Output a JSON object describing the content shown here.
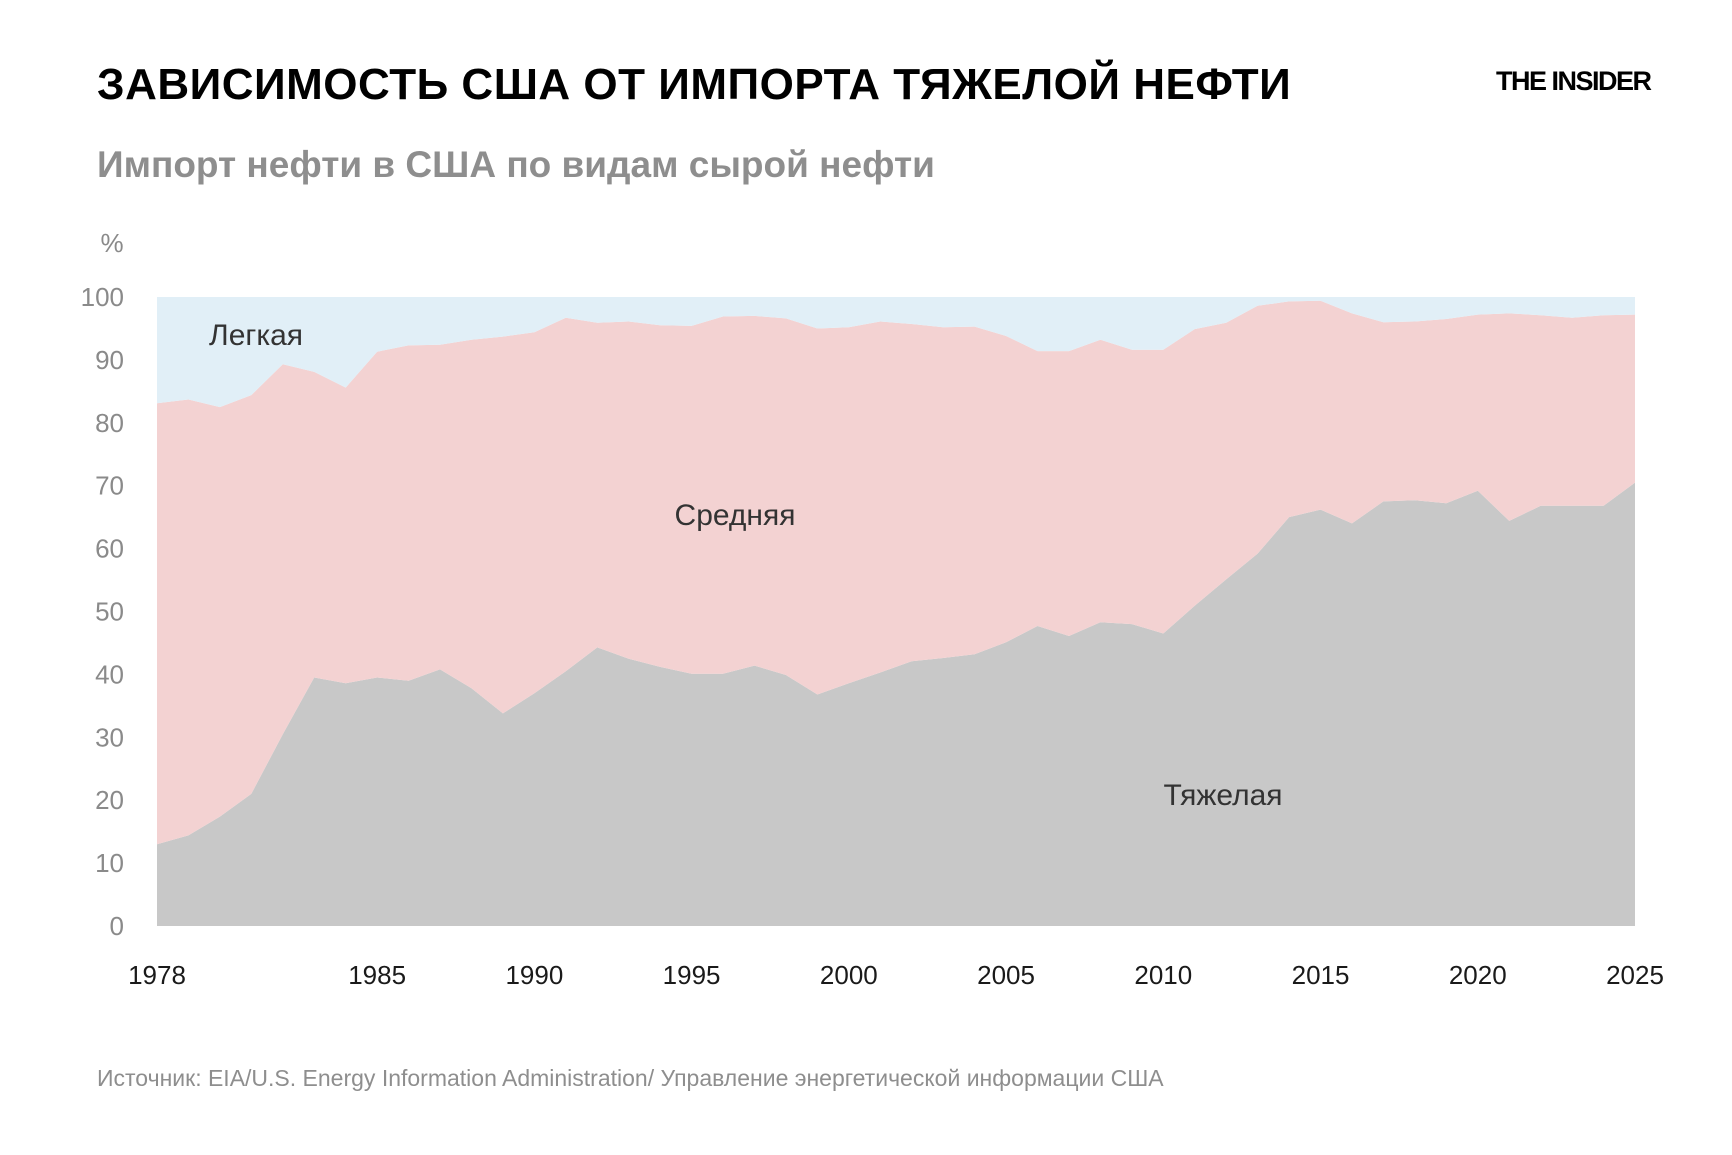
{
  "header": {
    "title": "ЗАВИСИМОСТЬ США ОТ ИМПОРТА ТЯЖЕЛОЙ НЕФТИ",
    "logo": "THE INSIDER",
    "subtitle": "Импорт нефти в США по видам сырой нефти"
  },
  "footer": {
    "source": "Источник: EIA/U.S. Energy Information Administration/ Управление энергетической информации США"
  },
  "colors": {
    "light": "#e1eff7",
    "medium": "#f3d2d2",
    "heavy": "#c8c8c8"
  },
  "chart_data": {
    "type": "area",
    "stacked": true,
    "x_tick_labels": [
      "1978",
      "1985",
      "1990",
      "1995",
      "2000",
      "2005",
      "2010",
      "2015",
      "2020",
      "2025"
    ],
    "y_unit": "%",
    "y_ticks": [
      0,
      10,
      20,
      30,
      40,
      50,
      60,
      70,
      80,
      90,
      100
    ],
    "ylim": [
      0,
      100
    ],
    "xlim": [
      1978,
      2025
    ],
    "grid": false,
    "x": [
      1978,
      1979,
      1980,
      1981,
      1982,
      1983,
      1984,
      1985,
      1986,
      1987,
      1988,
      1989,
      1990,
      1991,
      1992,
      1993,
      1994,
      1995,
      1996,
      1997,
      1998,
      1999,
      2000,
      2001,
      2002,
      2003,
      2004,
      2005,
      2006,
      2007,
      2008,
      2009,
      2010,
      2011,
      2012,
      2013,
      2014,
      2015,
      2016,
      2017,
      2018,
      2019,
      2020,
      2021,
      2022,
      2023,
      2024,
      2025
    ],
    "series": [
      {
        "name": "Тяжелая",
        "values": [
          13,
          14.4,
          17.4,
          21,
          30.5,
          39.5,
          38.6,
          39.5,
          39,
          40.8,
          37.8,
          33.8,
          37,
          40.5,
          44.3,
          42.5,
          41.2,
          40.1,
          40.1,
          41.4,
          39.9,
          36.8,
          38.6,
          40.3,
          42.1,
          42.6,
          43.2,
          45.1,
          47.7,
          46.1,
          48.3,
          48,
          46.5,
          50.9,
          55.1,
          59.2,
          65,
          66.2,
          64,
          67.5,
          67.7,
          67.2,
          69.2,
          64.4,
          66.8,
          66.8,
          66.8,
          70.5
        ]
      },
      {
        "name": "Средняя",
        "values": [
          70.1,
          69.3,
          65.1,
          63.4,
          58.8,
          48.6,
          47,
          51.8,
          53.3,
          51.6,
          55.4,
          59.9,
          57.4,
          56.2,
          51.6,
          53.6,
          54.3,
          55.3,
          56.8,
          55.6,
          56.7,
          58.2,
          56.6,
          55.8,
          53.6,
          52.6,
          52.1,
          48.7,
          43.7,
          45.3,
          44.9,
          43.6,
          45.1,
          44,
          40.8,
          39.4,
          34.3,
          33.2,
          33.4,
          28.5,
          28.4,
          29.3,
          28,
          33,
          30.3,
          29.9,
          30.3,
          26.7
        ]
      },
      {
        "name": "Легкая",
        "values": [
          16.9,
          16.3,
          17.5,
          15.6,
          10.7,
          11.9,
          14.4,
          8.7,
          7.7,
          7.6,
          6.8,
          6.3,
          5.6,
          3.3,
          4.1,
          3.9,
          4.5,
          4.6,
          3.1,
          3,
          3.4,
          5,
          4.8,
          3.9,
          4.3,
          4.8,
          4.7,
          6.2,
          8.6,
          8.6,
          6.8,
          8.4,
          8.4,
          5.1,
          4.1,
          1.4,
          0.7,
          0.6,
          2.6,
          4,
          3.9,
          3.5,
          2.8,
          2.6,
          2.9,
          3.3,
          2.9,
          2.8
        ]
      }
    ]
  }
}
